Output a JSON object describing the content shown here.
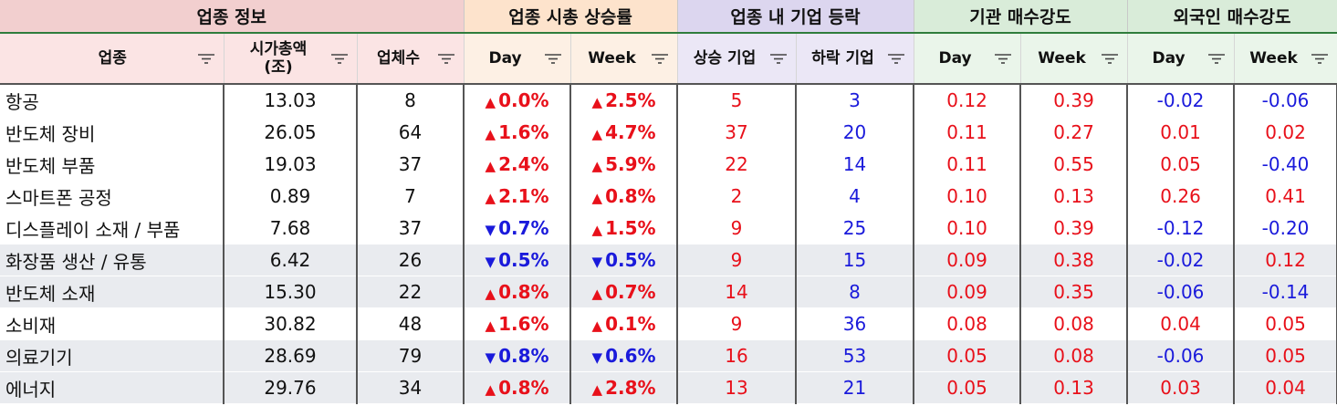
{
  "groups": [
    {
      "label": "업종 정보",
      "span": 3,
      "cls": "g-pink"
    },
    {
      "label": "업종 시총 상승률",
      "span": 2,
      "cls": "g-peach"
    },
    {
      "label": "업종 내 기업 등락",
      "span": 2,
      "cls": "g-purple"
    },
    {
      "label": "기관 매수강도",
      "span": 2,
      "cls": "g-green"
    },
    {
      "label": "외국인 매수강도",
      "span": 2,
      "cls": "g-green"
    }
  ],
  "columns": [
    {
      "label": "업종",
      "cls": "c-pink"
    },
    {
      "label": "시가총액\n(조)",
      "cls": "c-pink"
    },
    {
      "label": "업체수",
      "cls": "c-pink"
    },
    {
      "label": "Day",
      "cls": "c-peach"
    },
    {
      "label": "Week",
      "cls": "c-peach"
    },
    {
      "label": "상승 기업",
      "cls": "c-purple"
    },
    {
      "label": "하락 기업",
      "cls": "c-purple"
    },
    {
      "label": "Day",
      "cls": "c-green"
    },
    {
      "label": "Week",
      "cls": "c-green"
    },
    {
      "label": "Day",
      "cls": "c-green"
    },
    {
      "label": "Week",
      "cls": "c-green"
    }
  ],
  "rows": [
    {
      "name": "항공",
      "cap": "13.03",
      "count": "8",
      "day": {
        "dir": "up",
        "v": "0.0%"
      },
      "week": {
        "dir": "up",
        "v": "2.5%"
      },
      "rise": "5",
      "fall": "3",
      "inst_day": "0.12",
      "inst_week": "0.39",
      "for_day": "-0.02",
      "for_week": "-0.06",
      "alt": false
    },
    {
      "name": "반도체 장비",
      "cap": "26.05",
      "count": "64",
      "day": {
        "dir": "up",
        "v": "1.6%"
      },
      "week": {
        "dir": "up",
        "v": "4.7%"
      },
      "rise": "37",
      "fall": "20",
      "inst_day": "0.11",
      "inst_week": "0.27",
      "for_day": "0.01",
      "for_week": "0.02",
      "alt": false
    },
    {
      "name": "반도체 부품",
      "cap": "19.03",
      "count": "37",
      "day": {
        "dir": "up",
        "v": "2.4%"
      },
      "week": {
        "dir": "up",
        "v": "5.9%"
      },
      "rise": "22",
      "fall": "14",
      "inst_day": "0.11",
      "inst_week": "0.55",
      "for_day": "0.05",
      "for_week": "-0.40",
      "alt": false
    },
    {
      "name": "스마트폰 공정",
      "cap": "0.89",
      "count": "7",
      "day": {
        "dir": "up",
        "v": "2.1%"
      },
      "week": {
        "dir": "up",
        "v": "0.8%"
      },
      "rise": "2",
      "fall": "4",
      "inst_day": "0.10",
      "inst_week": "0.13",
      "for_day": "0.26",
      "for_week": "0.41",
      "alt": false
    },
    {
      "name": "디스플레이 소재 / 부품",
      "cap": "7.68",
      "count": "37",
      "day": {
        "dir": "down",
        "v": "0.7%"
      },
      "week": {
        "dir": "up",
        "v": "1.5%"
      },
      "rise": "9",
      "fall": "25",
      "inst_day": "0.10",
      "inst_week": "0.39",
      "for_day": "-0.12",
      "for_week": "-0.20",
      "alt": false
    },
    {
      "name": "화장품 생산 / 유통",
      "cap": "6.42",
      "count": "26",
      "day": {
        "dir": "down",
        "v": "0.5%"
      },
      "week": {
        "dir": "down",
        "v": "0.5%"
      },
      "rise": "9",
      "fall": "15",
      "inst_day": "0.09",
      "inst_week": "0.38",
      "for_day": "-0.02",
      "for_week": "0.12",
      "alt": true
    },
    {
      "name": "반도체 소재",
      "cap": "15.30",
      "count": "22",
      "day": {
        "dir": "up",
        "v": "0.8%"
      },
      "week": {
        "dir": "up",
        "v": "0.7%"
      },
      "rise": "14",
      "fall": "8",
      "inst_day": "0.09",
      "inst_week": "0.35",
      "for_day": "-0.06",
      "for_week": "-0.14",
      "alt": true
    },
    {
      "name": "소비재",
      "cap": "30.82",
      "count": "48",
      "day": {
        "dir": "up",
        "v": "1.6%"
      },
      "week": {
        "dir": "up",
        "v": "0.1%"
      },
      "rise": "9",
      "fall": "36",
      "inst_day": "0.08",
      "inst_week": "0.08",
      "for_day": "0.04",
      "for_week": "0.05",
      "alt": false
    },
    {
      "name": "의료기기",
      "cap": "28.69",
      "count": "79",
      "day": {
        "dir": "down",
        "v": "0.8%"
      },
      "week": {
        "dir": "down",
        "v": "0.6%"
      },
      "rise": "16",
      "fall": "53",
      "inst_day": "0.05",
      "inst_week": "0.08",
      "for_day": "-0.06",
      "for_week": "0.05",
      "alt": true
    },
    {
      "name": "에너지",
      "cap": "29.76",
      "count": "34",
      "day": {
        "dir": "up",
        "v": "0.8%"
      },
      "week": {
        "dir": "up",
        "v": "2.8%"
      },
      "rise": "13",
      "fall": "21",
      "inst_day": "0.05",
      "inst_week": "0.13",
      "for_day": "0.03",
      "for_week": "0.04",
      "alt": true
    }
  ],
  "symbols": {
    "up": "▲",
    "down": "▼"
  },
  "colors": {
    "positive": "#e8101a",
    "negative": "#1a1adb",
    "header_rule": "#2f7d3c"
  }
}
